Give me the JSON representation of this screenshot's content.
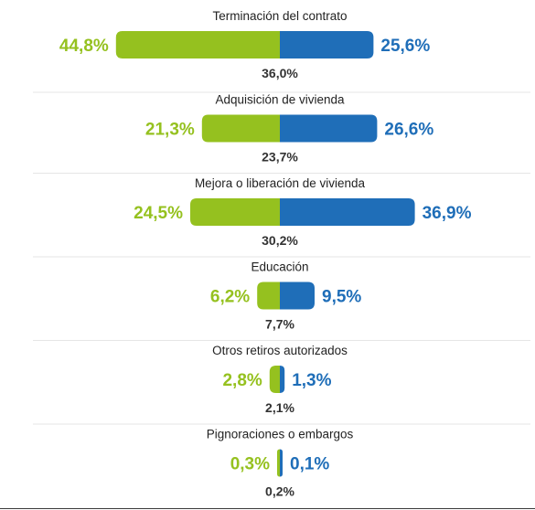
{
  "chart_data": {
    "type": "bar",
    "categories": [
      "Terminación del contrato",
      "Adquisición de vivienda",
      "Mejora o liberación de vivienda",
      "Educación",
      "Otros retiros autorizados",
      "Pignoraciones o embargos"
    ],
    "series": [
      {
        "color": "#95c11f",
        "values": [
          44.8,
          21.3,
          24.5,
          6.2,
          2.8,
          0.3
        ]
      },
      {
        "color": "#1f6eb8",
        "values": [
          25.6,
          26.6,
          36.9,
          9.5,
          1.3,
          0.1
        ]
      }
    ],
    "totals": [
      36.0,
      23.7,
      30.2,
      7.7,
      2.1,
      0.2
    ],
    "labels_left": [
      "44,8%",
      "21,3%",
      "24,5%",
      "6,2%",
      "2,8%",
      "0,3%"
    ],
    "labels_right": [
      "25,6%",
      "26,6%",
      "36,9%",
      "9,5%",
      "1,3%",
      "0,1%"
    ],
    "labels_total": [
      "36,0%",
      "23,7%",
      "30,2%",
      "7,7%",
      "2,1%",
      "0,2%"
    ],
    "orientation": "diverging-horizontal",
    "grid": false,
    "legend": "none"
  }
}
